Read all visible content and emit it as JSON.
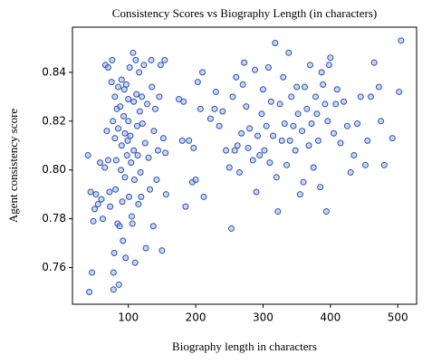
{
  "chart_data": {
    "type": "scatter",
    "title": "Consistency Scores vs Biography Length (in characters)",
    "x_label": "Biography length in characters",
    "y_label": "Agent consistency score",
    "color": "#2f4fb0",
    "fill": "#8fb0ea",
    "x": [
      40,
      42,
      44,
      46,
      48,
      50,
      52,
      55,
      58,
      60,
      62,
      65,
      66,
      68,
      70,
      70,
      72,
      73,
      75,
      76,
      77,
      78,
      78,
      79,
      80,
      80,
      81,
      82,
      83,
      84,
      85,
      85,
      86,
      87,
      88,
      89,
      90,
      90,
      91,
      92,
      93,
      94,
      95,
      95,
      96,
      97,
      98,
      99,
      100,
      100,
      101,
      102,
      103,
      104,
      105,
      106,
      107,
      108,
      108,
      109,
      110,
      111,
      112,
      113,
      114,
      115,
      116,
      117,
      118,
      119,
      120,
      121,
      123,
      125,
      126,
      128,
      130,
      132,
      134,
      135,
      137,
      138,
      140,
      142,
      144,
      146,
      148,
      150,
      152,
      154,
      155,
      156,
      175,
      180,
      182,
      185,
      190,
      195,
      197,
      200,
      203,
      207,
      210,
      212,
      222,
      228,
      230,
      235,
      240,
      245,
      250,
      253,
      255,
      258,
      260,
      262,
      265,
      268,
      270,
      272,
      275,
      278,
      280,
      285,
      288,
      290,
      292,
      295,
      298,
      300,
      302,
      305,
      308,
      310,
      312,
      315,
      318,
      320,
      322,
      325,
      328,
      330,
      332,
      335,
      338,
      340,
      342,
      345,
      348,
      350,
      352,
      355,
      358,
      360,
      362,
      365,
      368,
      370,
      372,
      375,
      378,
      380,
      382,
      385,
      387,
      389,
      392,
      394,
      396,
      398,
      400,
      405,
      408,
      410,
      415,
      420,
      425,
      430,
      435,
      440,
      445,
      452,
      455,
      460,
      465,
      472,
      475,
      480,
      492,
      502,
      505
    ],
    "values": [
      0.806,
      0.75,
      0.791,
      0.758,
      0.779,
      0.784,
      0.79,
      0.786,
      0.803,
      0.788,
      0.78,
      0.801,
      0.843,
      0.816,
      0.842,
      0.804,
      0.791,
      0.785,
      0.836,
      0.845,
      0.82,
      0.751,
      0.758,
      0.766,
      0.83,
      0.813,
      0.792,
      0.804,
      0.825,
      0.778,
      0.834,
      0.817,
      0.753,
      0.777,
      0.826,
      0.8,
      0.837,
      0.81,
      0.787,
      0.771,
      0.822,
      0.833,
      0.815,
      0.797,
      0.764,
      0.835,
      0.806,
      0.812,
      0.829,
      0.82,
      0.789,
      0.842,
      0.814,
      0.803,
      0.781,
      0.778,
      0.848,
      0.828,
      0.808,
      0.796,
      0.762,
      0.845,
      0.831,
      0.818,
      0.806,
      0.786,
      0.84,
      0.824,
      0.799,
      0.789,
      0.83,
      0.819,
      0.843,
      0.811,
      0.768,
      0.827,
      0.805,
      0.792,
      0.845,
      0.834,
      0.777,
      0.816,
      0.825,
      0.796,
      0.808,
      0.83,
      0.843,
      0.767,
      0.813,
      0.845,
      0.807,
      0.79,
      0.829,
      0.812,
      0.828,
      0.785,
      0.812,
      0.795,
      0.809,
      0.796,
      0.836,
      0.825,
      0.84,
      0.789,
      0.821,
      0.825,
      0.832,
      0.818,
      0.824,
      0.808,
      0.801,
      0.776,
      0.83,
      0.808,
      0.838,
      0.81,
      0.799,
      0.815,
      0.835,
      0.844,
      0.826,
      0.809,
      0.817,
      0.804,
      0.841,
      0.791,
      0.814,
      0.806,
      0.823,
      0.833,
      0.808,
      0.818,
      0.842,
      0.803,
      0.828,
      0.814,
      0.852,
      0.797,
      0.783,
      0.827,
      0.812,
      0.838,
      0.819,
      0.802,
      0.848,
      0.812,
      0.83,
      0.818,
      0.808,
      0.834,
      0.823,
      0.79,
      0.816,
      0.795,
      0.834,
      0.825,
      0.81,
      0.843,
      0.819,
      0.801,
      0.83,
      0.823,
      0.812,
      0.793,
      0.84,
      0.835,
      0.827,
      0.783,
      0.82,
      0.843,
      0.846,
      0.815,
      0.827,
      0.833,
      0.811,
      0.828,
      0.818,
      0.799,
      0.806,
      0.819,
      0.83,
      0.802,
      0.812,
      0.83,
      0.844,
      0.834,
      0.82,
      0.802,
      0.813,
      0.832,
      0.853
    ],
    "xlim": [
      17,
      528
    ],
    "ylim": [
      0.745,
      0.8585
    ],
    "xticks": [
      100,
      200,
      300,
      400,
      500
    ],
    "yticks": [
      0.76,
      0.78,
      {
        "value": 0.8,
        "label": "0.80"
      },
      0.82,
      0.84
    ]
  }
}
